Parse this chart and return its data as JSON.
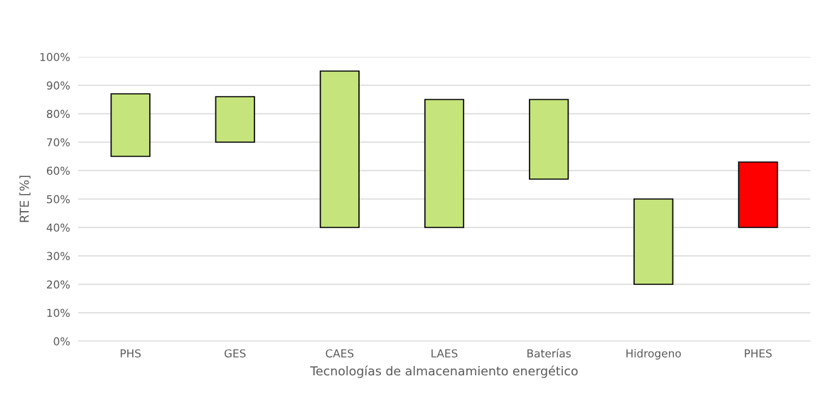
{
  "chart_data": {
    "type": "bar",
    "xlabel": "Tecnologías de almacenamiento energético",
    "ylabel": "RTE [%]",
    "categories": [
      "PHS",
      "GES",
      "CAES",
      "LAES",
      "Baterías",
      "Hidrogeno",
      "PHES"
    ],
    "base": [
      65,
      70,
      40,
      40,
      57,
      20,
      40
    ],
    "values": [
      22,
      16,
      55,
      45,
      28,
      30,
      23
    ],
    "colors": [
      "#c5e47c",
      "#c5e47c",
      "#c5e47c",
      "#c5e47c",
      "#c5e47c",
      "#c5e47c",
      "#ff0000"
    ],
    "ylim": [
      0,
      100
    ],
    "yticks": [
      {
        "value": 0,
        "label": "0%"
      },
      {
        "value": 10,
        "label": "10%"
      },
      {
        "value": 20,
        "label": "20%"
      },
      {
        "value": 30,
        "label": "30%"
      },
      {
        "value": 40,
        "label": "40%"
      },
      {
        "value": 50,
        "label": "50%"
      },
      {
        "value": 60,
        "label": "60%"
      },
      {
        "value": 70,
        "label": "70%"
      },
      {
        "value": 80,
        "label": "80%"
      },
      {
        "value": 90,
        "label": "90%"
      },
      {
        "value": 100,
        "label": "100%"
      }
    ],
    "grid": "y"
  }
}
